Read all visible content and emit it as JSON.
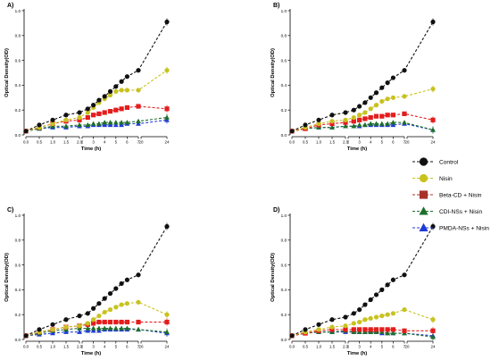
{
  "colors": {
    "Control": "#111111",
    "Nisin": "#c8c21f",
    "Beta-CD + Nisin": "#e41d1d",
    "CDI-NSs + Nisin": "#1e6f2a",
    "PMDA-NSs + Nisin": "#1f3bd6",
    "legend_beta": "#a8322b"
  },
  "legend": [
    {
      "name": "Control",
      "marker": "circle",
      "color_key": "Control"
    },
    {
      "name": "Nisin",
      "marker": "circle",
      "color_key": "Nisin"
    },
    {
      "name": "Beta-CD + Nisin",
      "marker": "square",
      "color_key": "legend_beta"
    },
    {
      "name": "CDI-NSs + Nisin",
      "marker": "triangle",
      "color_key": "CDI-NSs + Nisin"
    },
    {
      "name": "PMDA-NSs + Nisin",
      "marker": "triangle",
      "color_key": "PMDA-NSs + Nisin"
    }
  ],
  "chart_data": [
    {
      "panel": "A)",
      "type": "line",
      "xlabel": "Time (h)",
      "ylabel": "Optical Density(OD)",
      "ylim": [
        0,
        1.0
      ],
      "yticks": [
        "0.0",
        "0.2",
        "0.4",
        "0.6",
        "0.8",
        "1.0"
      ],
      "x_segments": [
        {
          "range": [
            0,
            2
          ],
          "ticks": [
            "0.0",
            "0.5",
            "1.0",
            "1.5",
            "2.0"
          ],
          "tick_values": [
            0,
            0.5,
            1,
            1.5,
            2
          ]
        },
        {
          "range": [
            2,
            7
          ],
          "ticks": [
            "2",
            "3",
            "4",
            "5",
            "6",
            "7"
          ],
          "tick_values": [
            2,
            3,
            4,
            5,
            6,
            7
          ]
        },
        {
          "range": [
            20,
            24
          ],
          "ticks": [
            "20",
            "24"
          ],
          "tick_values": [
            20,
            24
          ]
        }
      ],
      "series": [
        {
          "name": "Control",
          "x": [
            0,
            0.5,
            1,
            1.5,
            2,
            2.5,
            3,
            3.5,
            4,
            4.5,
            5,
            5.5,
            6,
            7,
            24
          ],
          "y": [
            0.03,
            0.08,
            0.12,
            0.16,
            0.18,
            0.21,
            0.24,
            0.28,
            0.31,
            0.35,
            0.39,
            0.43,
            0.47,
            0.52,
            0.91
          ]
        },
        {
          "name": "Nisin",
          "x": [
            0,
            0.5,
            1,
            1.5,
            2,
            2.5,
            3,
            3.5,
            4,
            4.5,
            5,
            5.5,
            6,
            7,
            24
          ],
          "y": [
            0.03,
            0.06,
            0.09,
            0.12,
            0.14,
            0.18,
            0.22,
            0.26,
            0.29,
            0.32,
            0.35,
            0.36,
            0.36,
            0.36,
            0.52
          ]
        },
        {
          "name": "Beta-CD + Nisin",
          "x": [
            0,
            0.5,
            1,
            1.5,
            2,
            2.5,
            3,
            3.5,
            4,
            4.5,
            5,
            5.5,
            6,
            7,
            24
          ],
          "y": [
            0.03,
            0.06,
            0.09,
            0.11,
            0.12,
            0.14,
            0.16,
            0.17,
            0.18,
            0.19,
            0.2,
            0.21,
            0.22,
            0.23,
            0.21
          ]
        },
        {
          "name": "CDI-NSs + Nisin",
          "x": [
            0,
            0.5,
            1,
            1.5,
            2,
            2.5,
            3,
            3.5,
            4,
            4.5,
            5,
            5.5,
            6,
            7,
            24
          ],
          "y": [
            0.03,
            0.05,
            0.07,
            0.07,
            0.08,
            0.08,
            0.09,
            0.09,
            0.1,
            0.1,
            0.1,
            0.1,
            0.1,
            0.11,
            0.14
          ]
        },
        {
          "name": "PMDA-NSs + Nisin",
          "x": [
            0,
            0.5,
            1,
            1.5,
            2,
            2.5,
            3,
            3.5,
            4,
            4.5,
            5,
            5.5,
            6,
            7,
            24
          ],
          "y": [
            0.03,
            0.05,
            0.06,
            0.06,
            0.07,
            0.07,
            0.08,
            0.08,
            0.08,
            0.08,
            0.08,
            0.08,
            0.09,
            0.09,
            0.12
          ]
        }
      ]
    },
    {
      "panel": "B)",
      "type": "line",
      "xlabel": "Time (h)",
      "ylabel": "Optical Density(OD)",
      "ylim": [
        0,
        1.0
      ],
      "yticks": [
        "0.0",
        "0.2",
        "0.4",
        "0.6",
        "0.8",
        "1.0"
      ],
      "x_segments": [
        {
          "range": [
            0,
            2
          ],
          "ticks": [
            "0.0",
            "0.5",
            "1.0",
            "1.5",
            "2.0"
          ],
          "tick_values": [
            0,
            0.5,
            1,
            1.5,
            2
          ]
        },
        {
          "range": [
            2,
            7
          ],
          "ticks": [
            "2",
            "3",
            "4",
            "5",
            "6",
            "7"
          ],
          "tick_values": [
            2,
            3,
            4,
            5,
            6,
            7
          ]
        },
        {
          "range": [
            20,
            24
          ],
          "ticks": [
            "20",
            "24"
          ],
          "tick_values": [
            20,
            24
          ]
        }
      ],
      "series": [
        {
          "name": "Control",
          "x": [
            0,
            0.5,
            1,
            1.5,
            2,
            2.5,
            3,
            3.5,
            4,
            4.5,
            5,
            5.5,
            6,
            7,
            24
          ],
          "y": [
            0.03,
            0.08,
            0.12,
            0.16,
            0.18,
            0.2,
            0.23,
            0.26,
            0.3,
            0.34,
            0.38,
            0.42,
            0.46,
            0.52,
            0.91
          ]
        },
        {
          "name": "Nisin",
          "x": [
            0,
            0.5,
            1,
            1.5,
            2,
            2.5,
            3,
            3.5,
            4,
            4.5,
            5,
            5.5,
            6,
            7,
            24
          ],
          "y": [
            0.03,
            0.06,
            0.09,
            0.11,
            0.12,
            0.14,
            0.16,
            0.18,
            0.21,
            0.24,
            0.27,
            0.29,
            0.3,
            0.31,
            0.37
          ]
        },
        {
          "name": "Beta-CD + Nisin",
          "x": [
            0,
            0.5,
            1,
            1.5,
            2,
            2.5,
            3,
            3.5,
            4,
            4.5,
            5,
            5.5,
            6,
            7,
            24
          ],
          "y": [
            0.03,
            0.05,
            0.08,
            0.09,
            0.1,
            0.11,
            0.12,
            0.13,
            0.14,
            0.15,
            0.15,
            0.16,
            0.16,
            0.17,
            0.12
          ]
        },
        {
          "name": "CDI-NSs + Nisin",
          "x": [
            0,
            0.5,
            1,
            1.5,
            2,
            2.5,
            3,
            3.5,
            4,
            4.5,
            5,
            5.5,
            6,
            7,
            24
          ],
          "y": [
            0.03,
            0.05,
            0.06,
            0.06,
            0.07,
            0.07,
            0.08,
            0.08,
            0.09,
            0.09,
            0.09,
            0.09,
            0.1,
            0.1,
            0.04
          ]
        },
        {
          "name": "PMDA-NSs + Nisin",
          "x": [
            0,
            0.5,
            1,
            1.5,
            2,
            2.5,
            3,
            3.5,
            4,
            4.5,
            5,
            5.5,
            6,
            7,
            24
          ],
          "y": [
            0.03,
            0.05,
            0.06,
            0.06,
            0.07,
            0.07,
            0.07,
            0.08,
            0.08,
            0.08,
            0.08,
            0.08,
            0.08,
            0.09,
            0.04
          ]
        }
      ]
    },
    {
      "panel": "C)",
      "type": "line",
      "xlabel": "Time (h)",
      "ylabel": "Optical Density(OD)",
      "ylim": [
        0,
        1.0
      ],
      "yticks": [
        "0.0",
        "0.2",
        "0.4",
        "0.6",
        "0.8",
        "1.0"
      ],
      "x_segments": [
        {
          "range": [
            0,
            2
          ],
          "ticks": [
            "0.0",
            "0.5",
            "1.0",
            "1.5",
            "2.0"
          ],
          "tick_values": [
            0,
            0.5,
            1,
            1.5,
            2
          ]
        },
        {
          "range": [
            2,
            7
          ],
          "ticks": [
            "2",
            "3",
            "4",
            "5",
            "6",
            "7"
          ],
          "tick_values": [
            2,
            3,
            4,
            5,
            6,
            7
          ]
        },
        {
          "range": [
            20,
            24
          ],
          "ticks": [
            "20",
            "24"
          ],
          "tick_values": [
            20,
            24
          ]
        }
      ],
      "series": [
        {
          "name": "Control",
          "x": [
            0,
            0.5,
            1,
            1.5,
            2,
            2.5,
            3,
            3.5,
            4,
            4.5,
            5,
            5.5,
            6,
            7,
            24
          ],
          "y": [
            0.03,
            0.08,
            0.12,
            0.16,
            0.19,
            0.21,
            0.25,
            0.29,
            0.33,
            0.37,
            0.41,
            0.45,
            0.48,
            0.52,
            0.91
          ]
        },
        {
          "name": "Nisin",
          "x": [
            0,
            0.5,
            1,
            1.5,
            2,
            2.5,
            3,
            3.5,
            4,
            4.5,
            5,
            5.5,
            6,
            7,
            24
          ],
          "y": [
            0.03,
            0.06,
            0.08,
            0.1,
            0.11,
            0.13,
            0.16,
            0.19,
            0.22,
            0.24,
            0.26,
            0.28,
            0.29,
            0.3,
            0.2
          ]
        },
        {
          "name": "Beta-CD + Nisin",
          "x": [
            0,
            0.5,
            1,
            1.5,
            2,
            2.5,
            3,
            3.5,
            4,
            4.5,
            5,
            5.5,
            6,
            7,
            24
          ],
          "y": [
            0.03,
            0.06,
            0.08,
            0.1,
            0.11,
            0.12,
            0.13,
            0.14,
            0.14,
            0.14,
            0.14,
            0.14,
            0.14,
            0.14,
            0.14
          ]
        },
        {
          "name": "CDI-NSs + Nisin",
          "x": [
            0,
            0.5,
            1,
            1.5,
            2,
            2.5,
            3,
            3.5,
            4,
            4.5,
            5,
            5.5,
            6,
            7,
            24
          ],
          "y": [
            0.03,
            0.05,
            0.07,
            0.08,
            0.09,
            0.09,
            0.09,
            0.09,
            0.09,
            0.09,
            0.09,
            0.09,
            0.09,
            0.08,
            0.06
          ]
        },
        {
          "name": "PMDA-NSs + Nisin",
          "x": [
            0,
            0.5,
            1,
            1.5,
            2,
            2.5,
            3,
            3.5,
            4,
            4.5,
            5,
            5.5,
            6,
            7,
            24
          ],
          "y": [
            0.03,
            0.04,
            0.05,
            0.06,
            0.06,
            0.07,
            0.07,
            0.07,
            0.08,
            0.08,
            0.08,
            0.08,
            0.08,
            0.08,
            0.05
          ]
        }
      ]
    },
    {
      "panel": "D)",
      "type": "line",
      "xlabel": "Time (h)",
      "ylabel": "Optical Density(OD)",
      "ylim": [
        0,
        1.0
      ],
      "yticks": [
        "0.0",
        "0.2",
        "0.4",
        "0.6",
        "0.8",
        "1.0"
      ],
      "x_segments": [
        {
          "range": [
            0,
            2
          ],
          "ticks": [
            "0.0",
            "0.5",
            "1.0",
            "1.5",
            "2.0"
          ],
          "tick_values": [
            0,
            0.5,
            1,
            1.5,
            2
          ]
        },
        {
          "range": [
            2,
            7
          ],
          "ticks": [
            "2",
            "3",
            "4",
            "5",
            "6",
            "7"
          ],
          "tick_values": [
            2,
            3,
            4,
            5,
            6,
            7
          ]
        },
        {
          "range": [
            20,
            24
          ],
          "ticks": [
            "20",
            "24"
          ],
          "tick_values": [
            20,
            24
          ]
        }
      ],
      "series": [
        {
          "name": "Control",
          "x": [
            0,
            0.5,
            1,
            1.5,
            2,
            2.5,
            3,
            3.5,
            4,
            4.5,
            5,
            5.5,
            6,
            7,
            24
          ],
          "y": [
            0.03,
            0.08,
            0.12,
            0.16,
            0.18,
            0.21,
            0.24,
            0.28,
            0.32,
            0.36,
            0.4,
            0.44,
            0.48,
            0.52,
            0.91
          ]
        },
        {
          "name": "Nisin",
          "x": [
            0,
            0.5,
            1,
            1.5,
            2,
            2.5,
            3,
            3.5,
            4,
            4.5,
            5,
            5.5,
            6,
            7,
            24
          ],
          "y": [
            0.03,
            0.06,
            0.08,
            0.1,
            0.11,
            0.13,
            0.14,
            0.16,
            0.17,
            0.18,
            0.19,
            0.2,
            0.21,
            0.24,
            0.16
          ]
        },
        {
          "name": "Beta-CD + Nisin",
          "x": [
            0,
            0.5,
            1,
            1.5,
            2,
            2.5,
            3,
            3.5,
            4,
            4.5,
            5,
            5.5,
            6,
            7,
            24
          ],
          "y": [
            0.03,
            0.05,
            0.07,
            0.08,
            0.08,
            0.08,
            0.08,
            0.08,
            0.08,
            0.08,
            0.08,
            0.08,
            0.08,
            0.07,
            0.07
          ]
        },
        {
          "name": "CDI-NSs + Nisin",
          "x": [
            0,
            0.5,
            1,
            1.5,
            2,
            2.5,
            3,
            3.5,
            4,
            4.5,
            5,
            5.5,
            6,
            7,
            24
          ],
          "y": [
            0.03,
            0.05,
            0.06,
            0.06,
            0.07,
            0.06,
            0.06,
            0.06,
            0.06,
            0.06,
            0.06,
            0.05,
            0.05,
            0.05,
            0.02
          ]
        },
        {
          "name": "PMDA-NSs + Nisin",
          "x": [
            0,
            0.5,
            1,
            1.5,
            2,
            2.5,
            3,
            3.5,
            4,
            4.5,
            5,
            5.5,
            6,
            7,
            24
          ],
          "y": [
            0.03,
            0.05,
            0.06,
            0.06,
            0.06,
            0.06,
            0.06,
            0.06,
            0.06,
            0.06,
            0.05,
            0.05,
            0.05,
            0.05,
            0.03
          ]
        }
      ]
    }
  ]
}
